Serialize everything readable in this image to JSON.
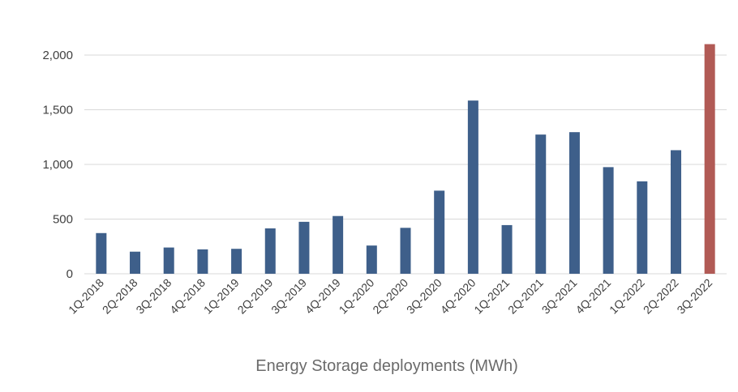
{
  "chart_data": {
    "type": "bar",
    "title": "",
    "xlabel": "Energy Storage deployments (MWh)",
    "ylabel": "",
    "ylim": [
      0,
      2000
    ],
    "yticks": [
      "0",
      "500",
      "1,000",
      "1,500",
      "2,000"
    ],
    "grid": "horizontal",
    "categories": [
      "1Q-2018",
      "2Q-2018",
      "3Q-2018",
      "4Q-2018",
      "1Q-2019",
      "2Q-2019",
      "3Q-2019",
      "4Q-2019",
      "1Q-2020",
      "2Q-2020",
      "3Q-2020",
      "4Q-2020",
      "1Q-2021",
      "2Q-2021",
      "3Q-2021",
      "4Q-2021",
      "1Q-2022",
      "2Q-2022",
      "3Q-2022"
    ],
    "values": [
      372,
      202,
      240,
      223,
      228,
      415,
      475,
      528,
      258,
      420,
      760,
      1584,
      445,
      1273,
      1295,
      975,
      845,
      1130,
      2100
    ],
    "colors": {
      "bar": "#3e5f8a",
      "highlight": "#b15a55",
      "grid": "#d9d9d9",
      "text": "#404040"
    }
  }
}
